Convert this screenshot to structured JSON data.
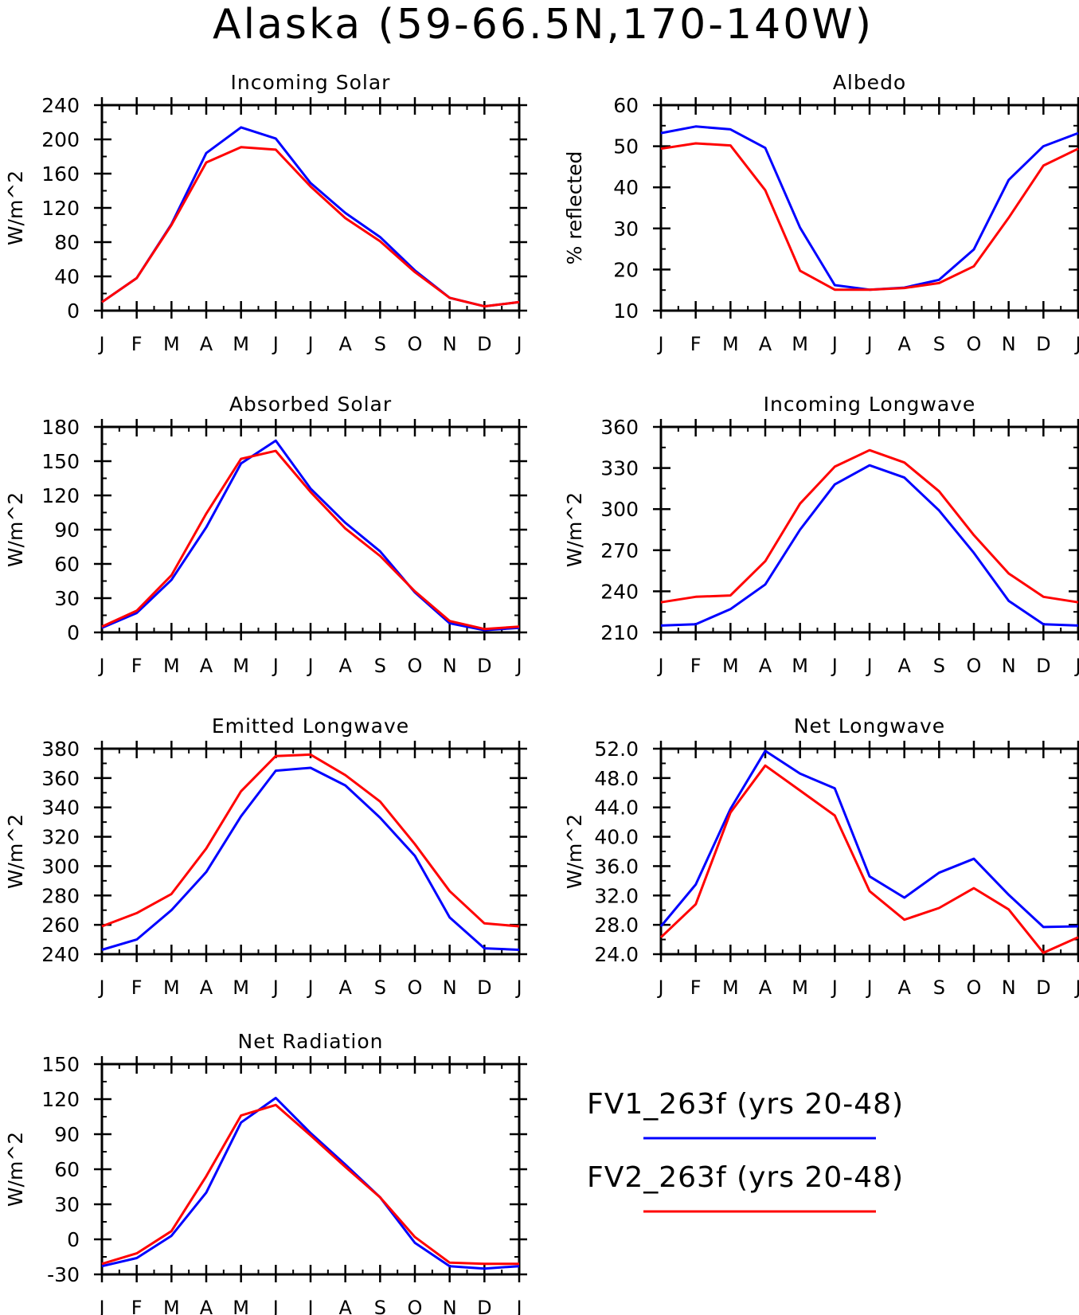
{
  "figure": {
    "title": "Alaska (59-66.5N,170-140W)",
    "months": [
      "J",
      "F",
      "M",
      "A",
      "M",
      "J",
      "J",
      "A",
      "S",
      "O",
      "N",
      "D",
      "J"
    ]
  },
  "legend": {
    "entries": [
      {
        "label": "FV1_263f (yrs 20-48)",
        "color": "#0000ff"
      },
      {
        "label": "FV2_263f (yrs 20-48)",
        "color": "#ff0000"
      }
    ]
  },
  "chart_data": [
    {
      "type": "line",
      "title": "Incoming Solar",
      "ylabel": "W/m^2",
      "ylim": [
        0,
        240
      ],
      "yticks": [
        0,
        40,
        80,
        120,
        160,
        200,
        240
      ],
      "ytick_labels": [
        "0",
        "40",
        "80",
        "120",
        "160",
        "200",
        "240"
      ],
      "series": [
        {
          "name": "FV1_263f (yrs 20-48)",
          "color": "#0000ff",
          "values": [
            10,
            38,
            101,
            184,
            214,
            201,
            149,
            114,
            86,
            47,
            15,
            5,
            10
          ]
        },
        {
          "name": "FV2_263f (yrs 20-48)",
          "color": "#ff0000",
          "values": [
            10,
            38,
            100,
            173,
            191,
            188,
            145,
            108,
            81,
            45,
            15,
            5,
            10
          ]
        }
      ]
    },
    {
      "type": "line",
      "title": "Albedo",
      "ylabel": "% reflected",
      "ylim": [
        10,
        60
      ],
      "yticks": [
        10,
        20,
        30,
        40,
        50,
        60
      ],
      "ytick_labels": [
        "10",
        "20",
        "30",
        "40",
        "50",
        "60"
      ],
      "series": [
        {
          "name": "FV1_263f (yrs 20-48)",
          "color": "#0000ff",
          "values": [
            53.2,
            54.8,
            54.1,
            49.6,
            30.2,
            16.2,
            15.1,
            15.6,
            17.5,
            24.9,
            41.8,
            50.0,
            53.2
          ]
        },
        {
          "name": "FV2_263f (yrs 20-48)",
          "color": "#ff0000",
          "values": [
            49.4,
            50.7,
            50.2,
            39.3,
            19.7,
            15.1,
            15.1,
            15.5,
            16.7,
            20.8,
            32.6,
            45.3,
            49.4
          ]
        }
      ]
    },
    {
      "type": "line",
      "title": "Absorbed Solar",
      "ylabel": "W/m^2",
      "ylim": [
        0,
        180
      ],
      "yticks": [
        0,
        30,
        60,
        90,
        120,
        150,
        180
      ],
      "ytick_labels": [
        "0",
        "30",
        "60",
        "90",
        "120",
        "150",
        "180"
      ],
      "series": [
        {
          "name": "FV1_263f (yrs 20-48)",
          "color": "#0000ff",
          "values": [
            4,
            17,
            46,
            92,
            148,
            168,
            126,
            96,
            71,
            35,
            8,
            2,
            4
          ]
        },
        {
          "name": "FV2_263f (yrs 20-48)",
          "color": "#ff0000",
          "values": [
            5,
            19,
            50,
            104,
            152,
            159,
            123,
            91,
            67,
            36,
            10,
            3,
            5
          ]
        }
      ]
    },
    {
      "type": "line",
      "title": "Incoming Longwave",
      "ylabel": "W/m^2",
      "ylim": [
        210,
        360
      ],
      "yticks": [
        210,
        240,
        270,
        300,
        330,
        360
      ],
      "ytick_labels": [
        "210",
        "240",
        "270",
        "300",
        "330",
        "360"
      ],
      "series": [
        {
          "name": "FV1_263f (yrs 20-48)",
          "color": "#0000ff",
          "values": [
            215,
            216,
            227,
            245,
            285,
            318,
            332,
            323,
            299,
            268,
            233,
            216,
            215
          ]
        },
        {
          "name": "FV2_263f (yrs 20-48)",
          "color": "#ff0000",
          "values": [
            232,
            236,
            237,
            262,
            304,
            331,
            343,
            334,
            313,
            281,
            253,
            236,
            232
          ]
        }
      ]
    },
    {
      "type": "line",
      "title": "Emitted Longwave",
      "ylabel": "W/m^2",
      "ylim": [
        240,
        380
      ],
      "yticks": [
        240,
        260,
        280,
        300,
        320,
        340,
        360,
        380
      ],
      "ytick_labels": [
        "240",
        "260",
        "280",
        "300",
        "320",
        "340",
        "360",
        "380"
      ],
      "series": [
        {
          "name": "FV1_263f (yrs 20-48)",
          "color": "#0000ff",
          "values": [
            243,
            250,
            270,
            296,
            334,
            365,
            367,
            355,
            333,
            307,
            265,
            244,
            243
          ]
        },
        {
          "name": "FV2_263f (yrs 20-48)",
          "color": "#ff0000",
          "values": [
            259,
            268,
            281,
            312,
            351,
            375,
            376,
            362,
            344,
            315,
            283,
            261,
            259
          ]
        }
      ]
    },
    {
      "type": "line",
      "title": "Net Longwave",
      "ylabel": "W/m^2",
      "ylim": [
        24,
        52
      ],
      "yticks": [
        24,
        28,
        32,
        36,
        40,
        44,
        48,
        52
      ],
      "ytick_labels": [
        "24.0",
        "28.0",
        "32.0",
        "36.0",
        "40.0",
        "44.0",
        "48.0",
        "52.0"
      ],
      "series": [
        {
          "name": "FV1_263f (yrs 20-48)",
          "color": "#0000ff",
          "values": [
            27.8,
            33.5,
            43.8,
            51.7,
            48.6,
            46.6,
            34.6,
            31.7,
            35.1,
            37.0,
            32.1,
            27.7,
            27.8
          ]
        },
        {
          "name": "FV2_263f (yrs 20-48)",
          "color": "#ff0000",
          "values": [
            26.3,
            30.8,
            43.3,
            49.7,
            46.3,
            42.9,
            32.6,
            28.7,
            30.3,
            33.0,
            30.1,
            24.2,
            26.3
          ]
        }
      ]
    },
    {
      "type": "line",
      "title": "Net Radiation",
      "ylabel": "W/m^2",
      "ylim": [
        -30,
        150
      ],
      "yticks": [
        -30,
        0,
        30,
        60,
        90,
        120,
        150
      ],
      "ytick_labels": [
        "-30",
        "0",
        "30",
        "60",
        "90",
        "120",
        "150"
      ],
      "series": [
        {
          "name": "FV1_263f (yrs 20-48)",
          "color": "#0000ff",
          "values": [
            -23,
            -16,
            3,
            40,
            100,
            121,
            91,
            64,
            36,
            -3,
            -23,
            -25,
            -23
          ]
        },
        {
          "name": "FV2_263f (yrs 20-48)",
          "color": "#ff0000",
          "values": [
            -21,
            -12,
            7,
            54,
            106,
            115,
            89,
            62,
            36,
            2,
            -20,
            -21,
            -21
          ]
        }
      ]
    }
  ]
}
